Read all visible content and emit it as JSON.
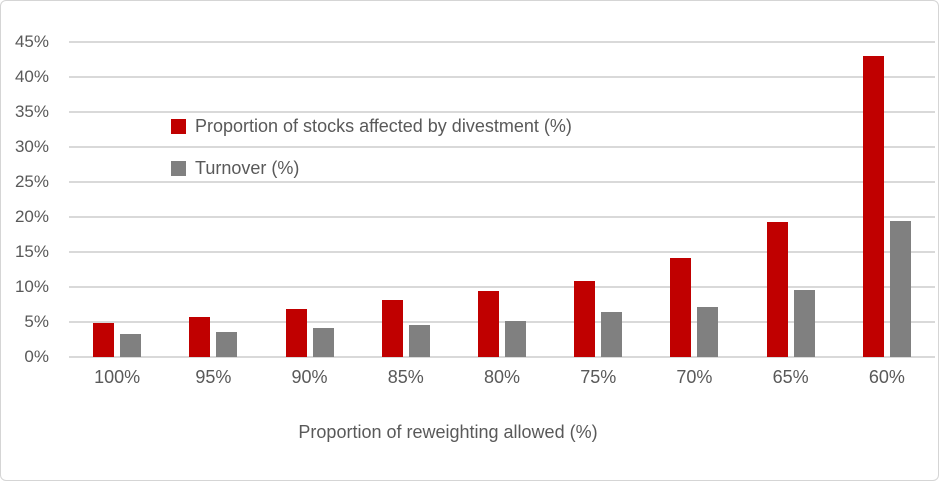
{
  "chart_data": {
    "type": "bar",
    "title": "",
    "categories": [
      "100%",
      "95%",
      "90%",
      "85%",
      "80%",
      "75%",
      "70%",
      "65%",
      "60%"
    ],
    "series": [
      {
        "name": "Proportion of stocks affected by divestment (%)",
        "color": "#c00000",
        "values": [
          4.9,
          5.7,
          6.9,
          8.2,
          9.4,
          10.9,
          14.1,
          19.3,
          43.0
        ]
      },
      {
        "name": "Turnover (%)",
        "color": "#808080",
        "values": [
          3.3,
          3.6,
          4.1,
          4.5,
          5.1,
          6.4,
          7.1,
          9.6,
          19.4
        ]
      }
    ],
    "xlabel": "Proportion of reweighting allowed (%)",
    "ylabel": "",
    "ylim": [
      0,
      45
    ],
    "ytick_step": 5,
    "ytick_labels": [
      "0%",
      "5%",
      "10%",
      "15%",
      "20%",
      "25%",
      "30%",
      "35%",
      "40%",
      "45%"
    ],
    "grid": true,
    "legend_position": "inside-top-left"
  },
  "colors": {
    "gridline": "#d9d9d9",
    "axis_text": "#595959",
    "frame_border": "#d5d5d5",
    "background": "#ffffff"
  }
}
